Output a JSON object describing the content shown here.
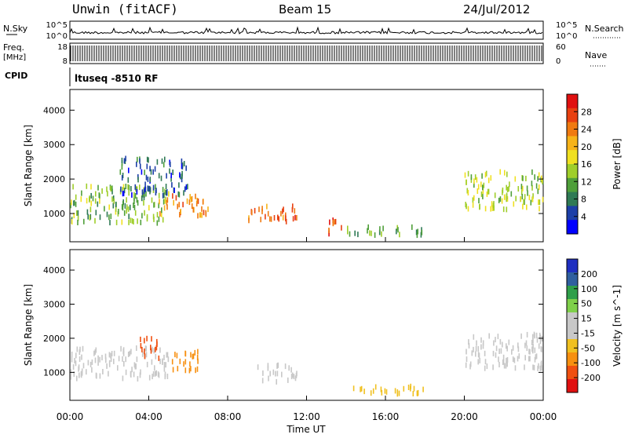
{
  "header": {
    "site": "Unwin (fitACF)",
    "beam": "Beam 15",
    "date": "24/Jul/2012"
  },
  "left_labels": {
    "nsky": "N.Sky",
    "freq": "Freq.",
    "freq_unit": "[MHz]",
    "cpid": "CPID"
  },
  "right_labels": {
    "nsearch": "N.Search",
    "nave": "Nave"
  },
  "noise_axis": {
    "top": "10^5",
    "bottom": "10^0",
    "right_top": "10^5",
    "right_bottom": "10^0"
  },
  "freq_axis": {
    "top": "18",
    "bottom": "8",
    "right_top": "60",
    "right_bottom": "0"
  },
  "cpid_text": "ltuseq -8510 RF",
  "colors": {
    "power_scale": [
      "#0000ff",
      "#1c3fa8",
      "#2f7a55",
      "#4f9f3a",
      "#9fce2a",
      "#f0e020",
      "#f7b318",
      "#f07a10",
      "#e84010",
      "#e01010"
    ],
    "velocity_scale": [
      "#e01010",
      "#f05010",
      "#f79010",
      "#f0c020",
      "#c8c8c8",
      "#c8c8c8",
      "#7fd04a",
      "#2f9f4a",
      "#2f5f9f",
      "#1f2fc0"
    ]
  },
  "chart_data": [
    {
      "type": "heatmap",
      "name_field": "power",
      "xlabel": "Time UT",
      "ylabel": "Slant Range [km]",
      "x_ticks": [
        "00:00",
        "04:00",
        "08:00",
        "12:00",
        "16:00",
        "20:00",
        "00:00"
      ],
      "xlim_hours": [
        0,
        24
      ],
      "y_ticks": [
        1000,
        2000,
        3000,
        4000
      ],
      "ylim": [
        180,
        4600
      ],
      "colorbar": {
        "label": "Power [dB]",
        "ticks": [
          4,
          8,
          12,
          16,
          20,
          24,
          28
        ],
        "range": [
          0,
          30
        ]
      },
      "regions": [
        {
          "t": [
            0.0,
            5.0
          ],
          "r": [
            700,
            1800
          ],
          "value": 12
        },
        {
          "t": [
            2.5,
            6.0
          ],
          "r": [
            1500,
            2600
          ],
          "value": 6
        },
        {
          "t": [
            4.5,
            7.0
          ],
          "r": [
            900,
            1500
          ],
          "value": 22
        },
        {
          "t": [
            9.0,
            11.5
          ],
          "r": [
            700,
            1200
          ],
          "value": 24
        },
        {
          "t": [
            13.0,
            14.0
          ],
          "r": [
            400,
            800
          ],
          "value": 26
        },
        {
          "t": [
            14.0,
            18.0
          ],
          "r": [
            350,
            600
          ],
          "value": 10
        },
        {
          "t": [
            20.0,
            24.0
          ],
          "r": [
            1100,
            2200
          ],
          "value": 14
        }
      ]
    },
    {
      "type": "heatmap",
      "name_field": "velocity",
      "xlabel": "Time UT",
      "ylabel": "Slant Range [km]",
      "x_ticks": [
        "00:00",
        "04:00",
        "08:00",
        "12:00",
        "16:00",
        "20:00",
        "00:00"
      ],
      "xlim_hours": [
        0,
        24
      ],
      "y_ticks": [
        1000,
        2000,
        3000,
        4000
      ],
      "ylim": [
        180,
        4600
      ],
      "colorbar": {
        "label": "Velocity [m s^-1]",
        "ticks": [
          "200",
          "100",
          "50",
          "15",
          "-15",
          "-50",
          "-100",
          "-200"
        ]
      },
      "regions": [
        {
          "t": [
            0.0,
            5.0
          ],
          "r": [
            800,
            1700
          ],
          "value": 0
        },
        {
          "t": [
            3.5,
            4.5
          ],
          "r": [
            1400,
            2000
          ],
          "value": -150
        },
        {
          "t": [
            5.0,
            6.5
          ],
          "r": [
            1000,
            1600
          ],
          "value": -80
        },
        {
          "t": [
            9.5,
            11.5
          ],
          "r": [
            700,
            1200
          ],
          "value": 0
        },
        {
          "t": [
            14.0,
            18.0
          ],
          "r": [
            350,
            600
          ],
          "value": -40
        },
        {
          "t": [
            20.0,
            24.0
          ],
          "r": [
            1100,
            2100
          ],
          "value": 0
        }
      ]
    }
  ]
}
